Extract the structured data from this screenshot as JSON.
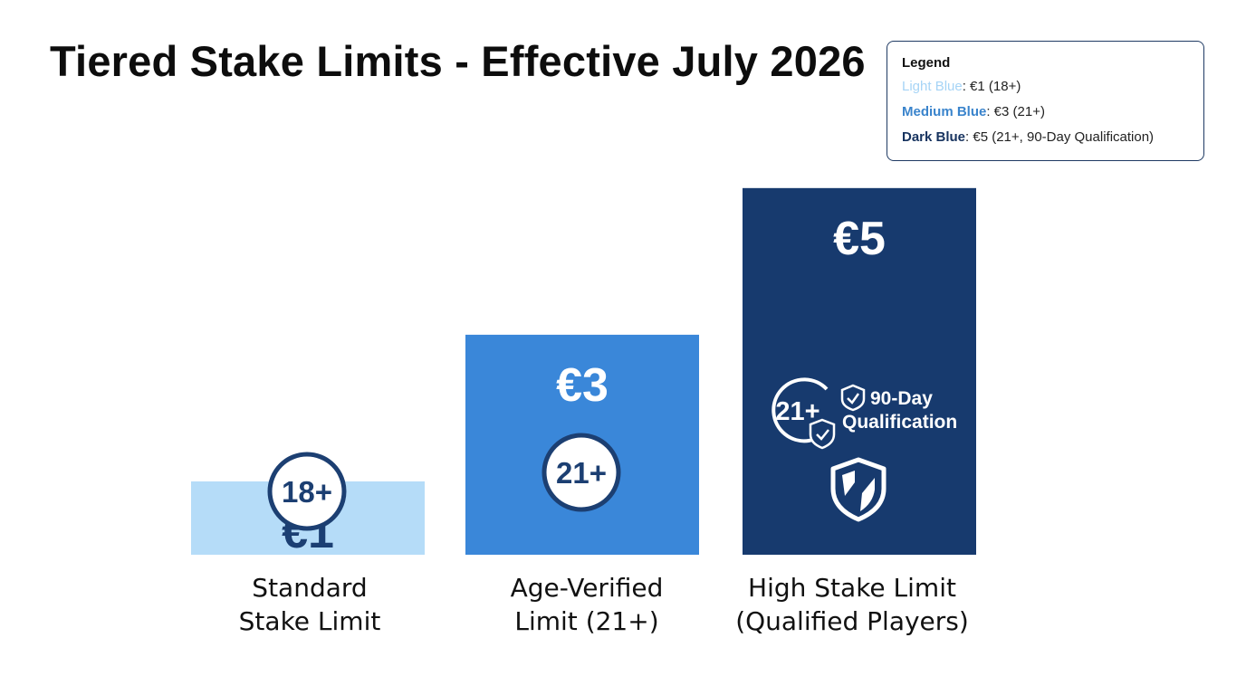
{
  "chart_data": {
    "type": "bar",
    "title": "Tiered Stake Limits - Effective July 2026",
    "categories": [
      "Standard\nStake Limit",
      "Age-Verified\nLimit (21+)",
      "High Stake Limit\n(Qualified Players)"
    ],
    "values": [
      1,
      3,
      5
    ],
    "value_labels": [
      "€1",
      "€3",
      "€5"
    ],
    "badges": [
      "18+",
      "21+",
      "21+"
    ],
    "qualification_note": [
      "90-Day",
      "Qualification"
    ],
    "colors": [
      "#b5dcf8",
      "#3a87d9",
      "#173a6e"
    ],
    "value_text_colors": [
      "#1b3f73",
      "#ffffff",
      "#ffffff"
    ],
    "ylim": [
      0,
      5.8
    ],
    "grid": false,
    "legend_placement": "top-right"
  },
  "legend": {
    "title": "Legend",
    "items": [
      {
        "key": "Light Blue",
        "text": ": €1 (18+)",
        "color": "#a6d4f6"
      },
      {
        "key": "Medium Blue",
        "text": ": €3 (21+)",
        "color": "#3a84cc"
      },
      {
        "key": "Dark Blue",
        "text": ": €5 (21+, 90-Day Qualification)",
        "color": "#17335f"
      }
    ]
  }
}
